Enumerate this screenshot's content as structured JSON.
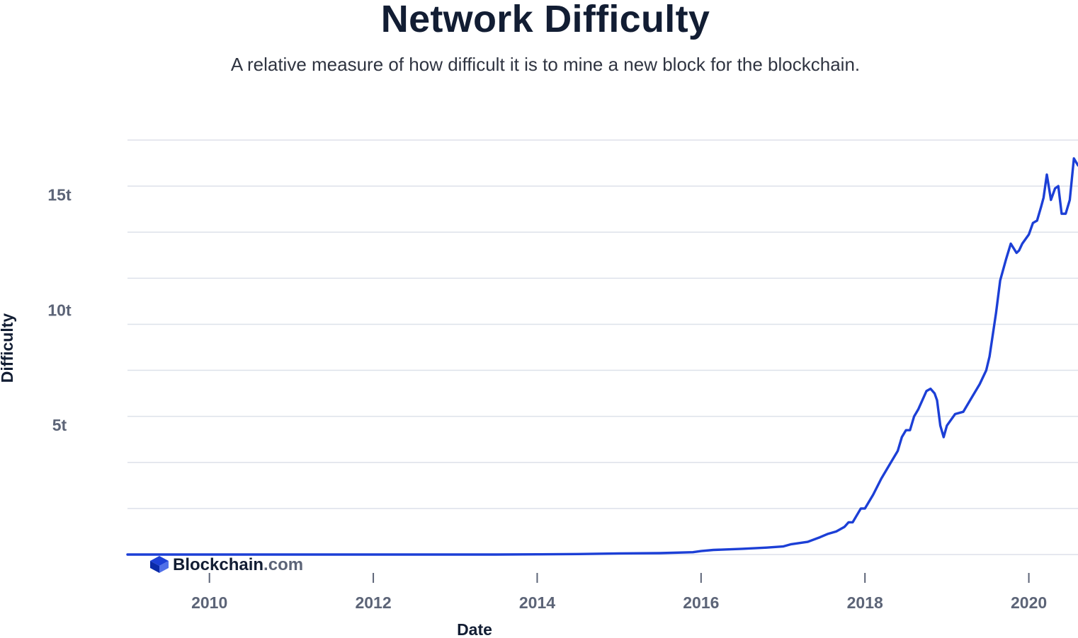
{
  "header": {
    "title": "Network Difficulty",
    "subtitle": "A relative measure of how difficult it is to mine a new block for the blockchain."
  },
  "brand": {
    "name": "Blockchain",
    "suffix": ".com"
  },
  "colors": {
    "line": "#1c3fd6",
    "grid": "#dde1ea",
    "tick": "#5c6477",
    "brand_blue": "#1c3fd6"
  },
  "chart_data": {
    "type": "line",
    "title": "Network Difficulty",
    "xlabel": "Date",
    "ylabel": "Difficulty",
    "xlim": [
      2009.0,
      2020.6
    ],
    "ylim": [
      0,
      18
    ],
    "grid": true,
    "x_ticks": [
      2010,
      2012,
      2014,
      2016,
      2018,
      2020
    ],
    "x_tick_labels": [
      "2010",
      "2012",
      "2014",
      "2016",
      "2018",
      "2020"
    ],
    "y_ticks": [
      5,
      10,
      15
    ],
    "y_tick_labels": [
      "5t",
      "10t",
      "15t"
    ],
    "y_gridlines": [
      0,
      2,
      4,
      6,
      8,
      10,
      12,
      14,
      16,
      18
    ],
    "series": [
      {
        "name": "Difficulty",
        "unit": "t",
        "x": [
          2009.0,
          2012.0,
          2013.5,
          2014.0,
          2014.5,
          2015.0,
          2015.5,
          2015.9,
          2016.0,
          2016.15,
          2016.5,
          2016.8,
          2017.0,
          2017.1,
          2017.3,
          2017.45,
          2017.55,
          2017.65,
          2017.75,
          2017.8,
          2017.85,
          2017.9,
          2017.95,
          2018.0,
          2018.1,
          2018.2,
          2018.3,
          2018.4,
          2018.45,
          2018.5,
          2018.55,
          2018.6,
          2018.65,
          2018.7,
          2018.75,
          2018.8,
          2018.85,
          2018.88,
          2018.92,
          2018.96,
          2019.0,
          2019.1,
          2019.2,
          2019.3,
          2019.4,
          2019.48,
          2019.52,
          2019.6,
          2019.65,
          2019.72,
          2019.78,
          2019.85,
          2019.88,
          2019.92,
          2020.0,
          2020.05,
          2020.1,
          2020.15,
          2020.18,
          2020.22,
          2020.27,
          2020.32,
          2020.36,
          2020.4,
          2020.45,
          2020.5,
          2020.55,
          2020.6
        ],
        "values": [
          0.0,
          0.0,
          0.0,
          0.01,
          0.02,
          0.05,
          0.06,
          0.1,
          0.15,
          0.2,
          0.25,
          0.3,
          0.35,
          0.45,
          0.55,
          0.75,
          0.9,
          1.0,
          1.2,
          1.4,
          1.4,
          1.7,
          2.0,
          2.0,
          2.6,
          3.3,
          3.9,
          4.5,
          5.1,
          5.4,
          5.4,
          6.0,
          6.3,
          6.7,
          7.1,
          7.2,
          7.0,
          6.7,
          5.6,
          5.1,
          5.6,
          6.1,
          6.2,
          6.8,
          7.4,
          8.0,
          8.6,
          10.5,
          11.9,
          12.8,
          13.5,
          13.1,
          13.2,
          13.5,
          13.9,
          14.4,
          14.5,
          15.1,
          15.5,
          16.5,
          15.4,
          15.9,
          16.0,
          14.8,
          14.8,
          15.4,
          17.2,
          16.9
        ]
      }
    ]
  }
}
